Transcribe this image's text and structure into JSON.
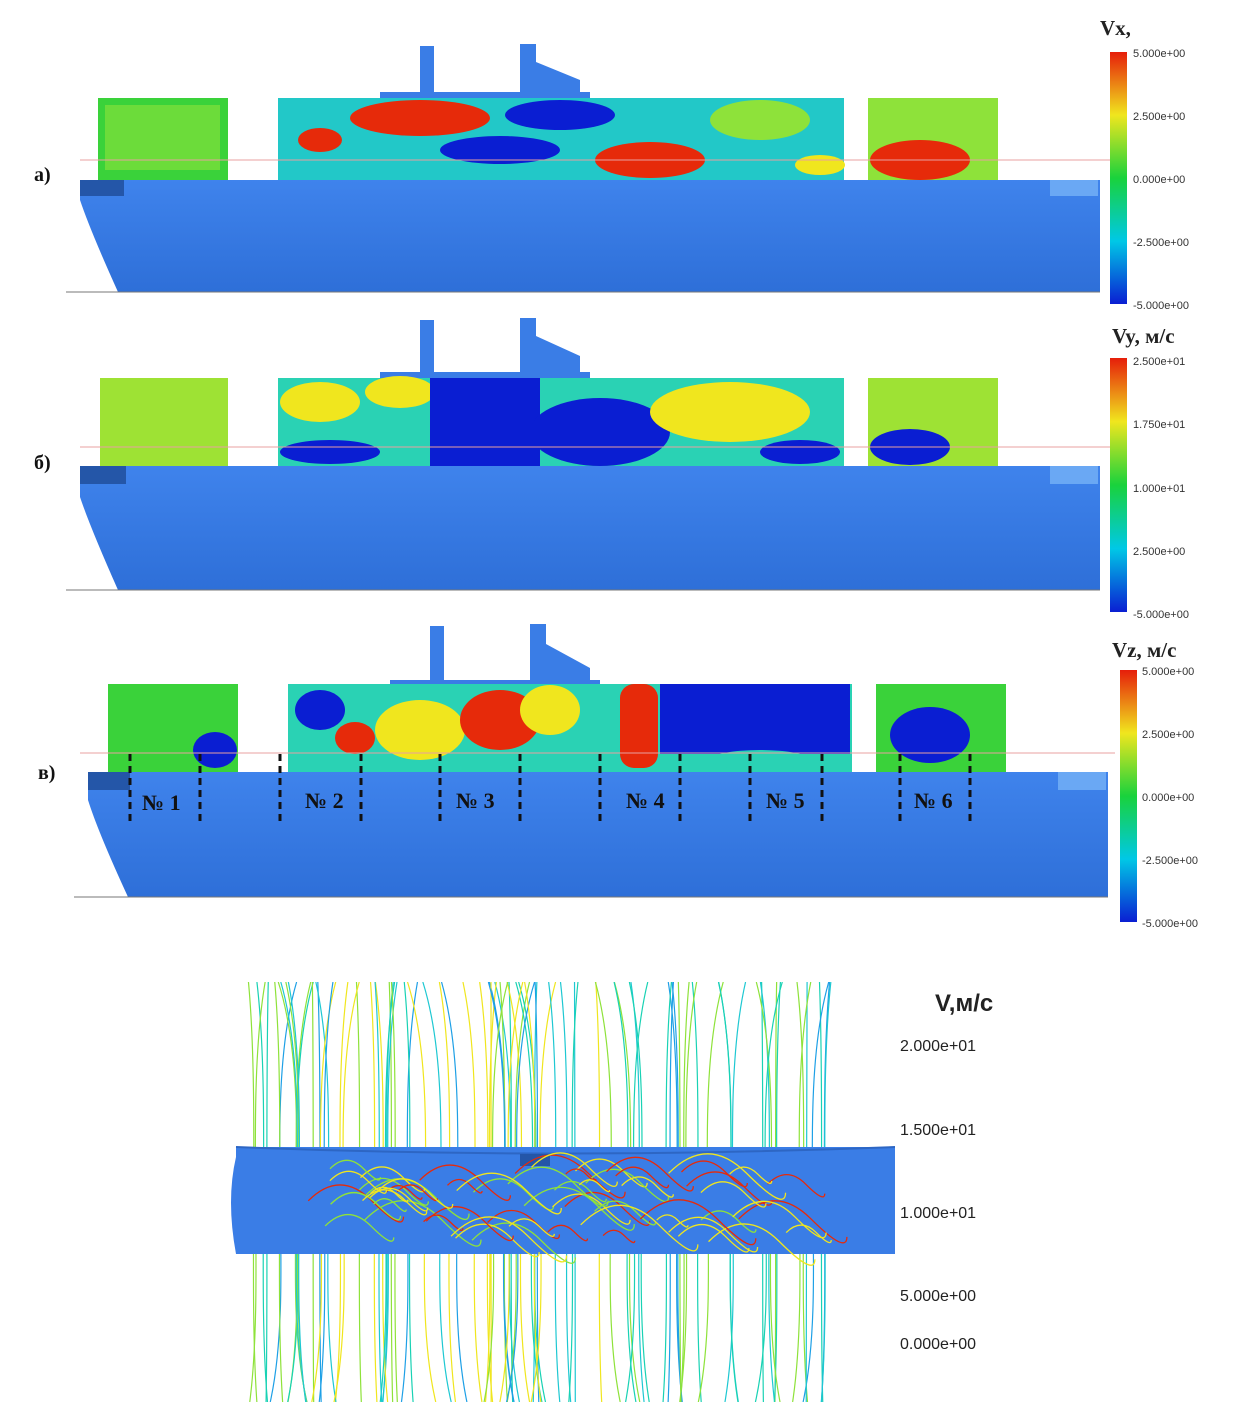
{
  "panels": [
    {
      "label": "а)",
      "title": "Vx,",
      "ticks": [
        "5.000e+00",
        "2.500e+00",
        "0.000e+00",
        "-2.500e+00",
        "-5.000e+00"
      ]
    },
    {
      "label": "б)",
      "title": "Vy, м/с",
      "ticks": [
        "2.500e+01",
        "1.750e+01",
        "1.000e+01",
        "2.500e+00",
        "-5.000e+00"
      ]
    },
    {
      "label": "в)",
      "title": "Vz, м/с",
      "ticks": [
        "5.000e+00",
        "2.500e+00",
        "0.000e+00",
        "-2.500e+00",
        "-5.000e+00"
      ]
    }
  ],
  "holds": [
    "№ 1",
    "№ 2",
    "№ 3",
    "№ 4",
    "№ 5",
    "№ 6"
  ],
  "streamlines": {
    "title": "V,м/с",
    "ticks": [
      "2.000e+01",
      "1.500e+01",
      "1.000e+01",
      "5.000e+00",
      "0.000e+00"
    ]
  },
  "colors": {
    "hull": "#3a7de6",
    "colormap": [
      "#0a1ed2",
      "#00c8e6",
      "#19d23c",
      "#f0e61e",
      "#e61e0a"
    ]
  }
}
